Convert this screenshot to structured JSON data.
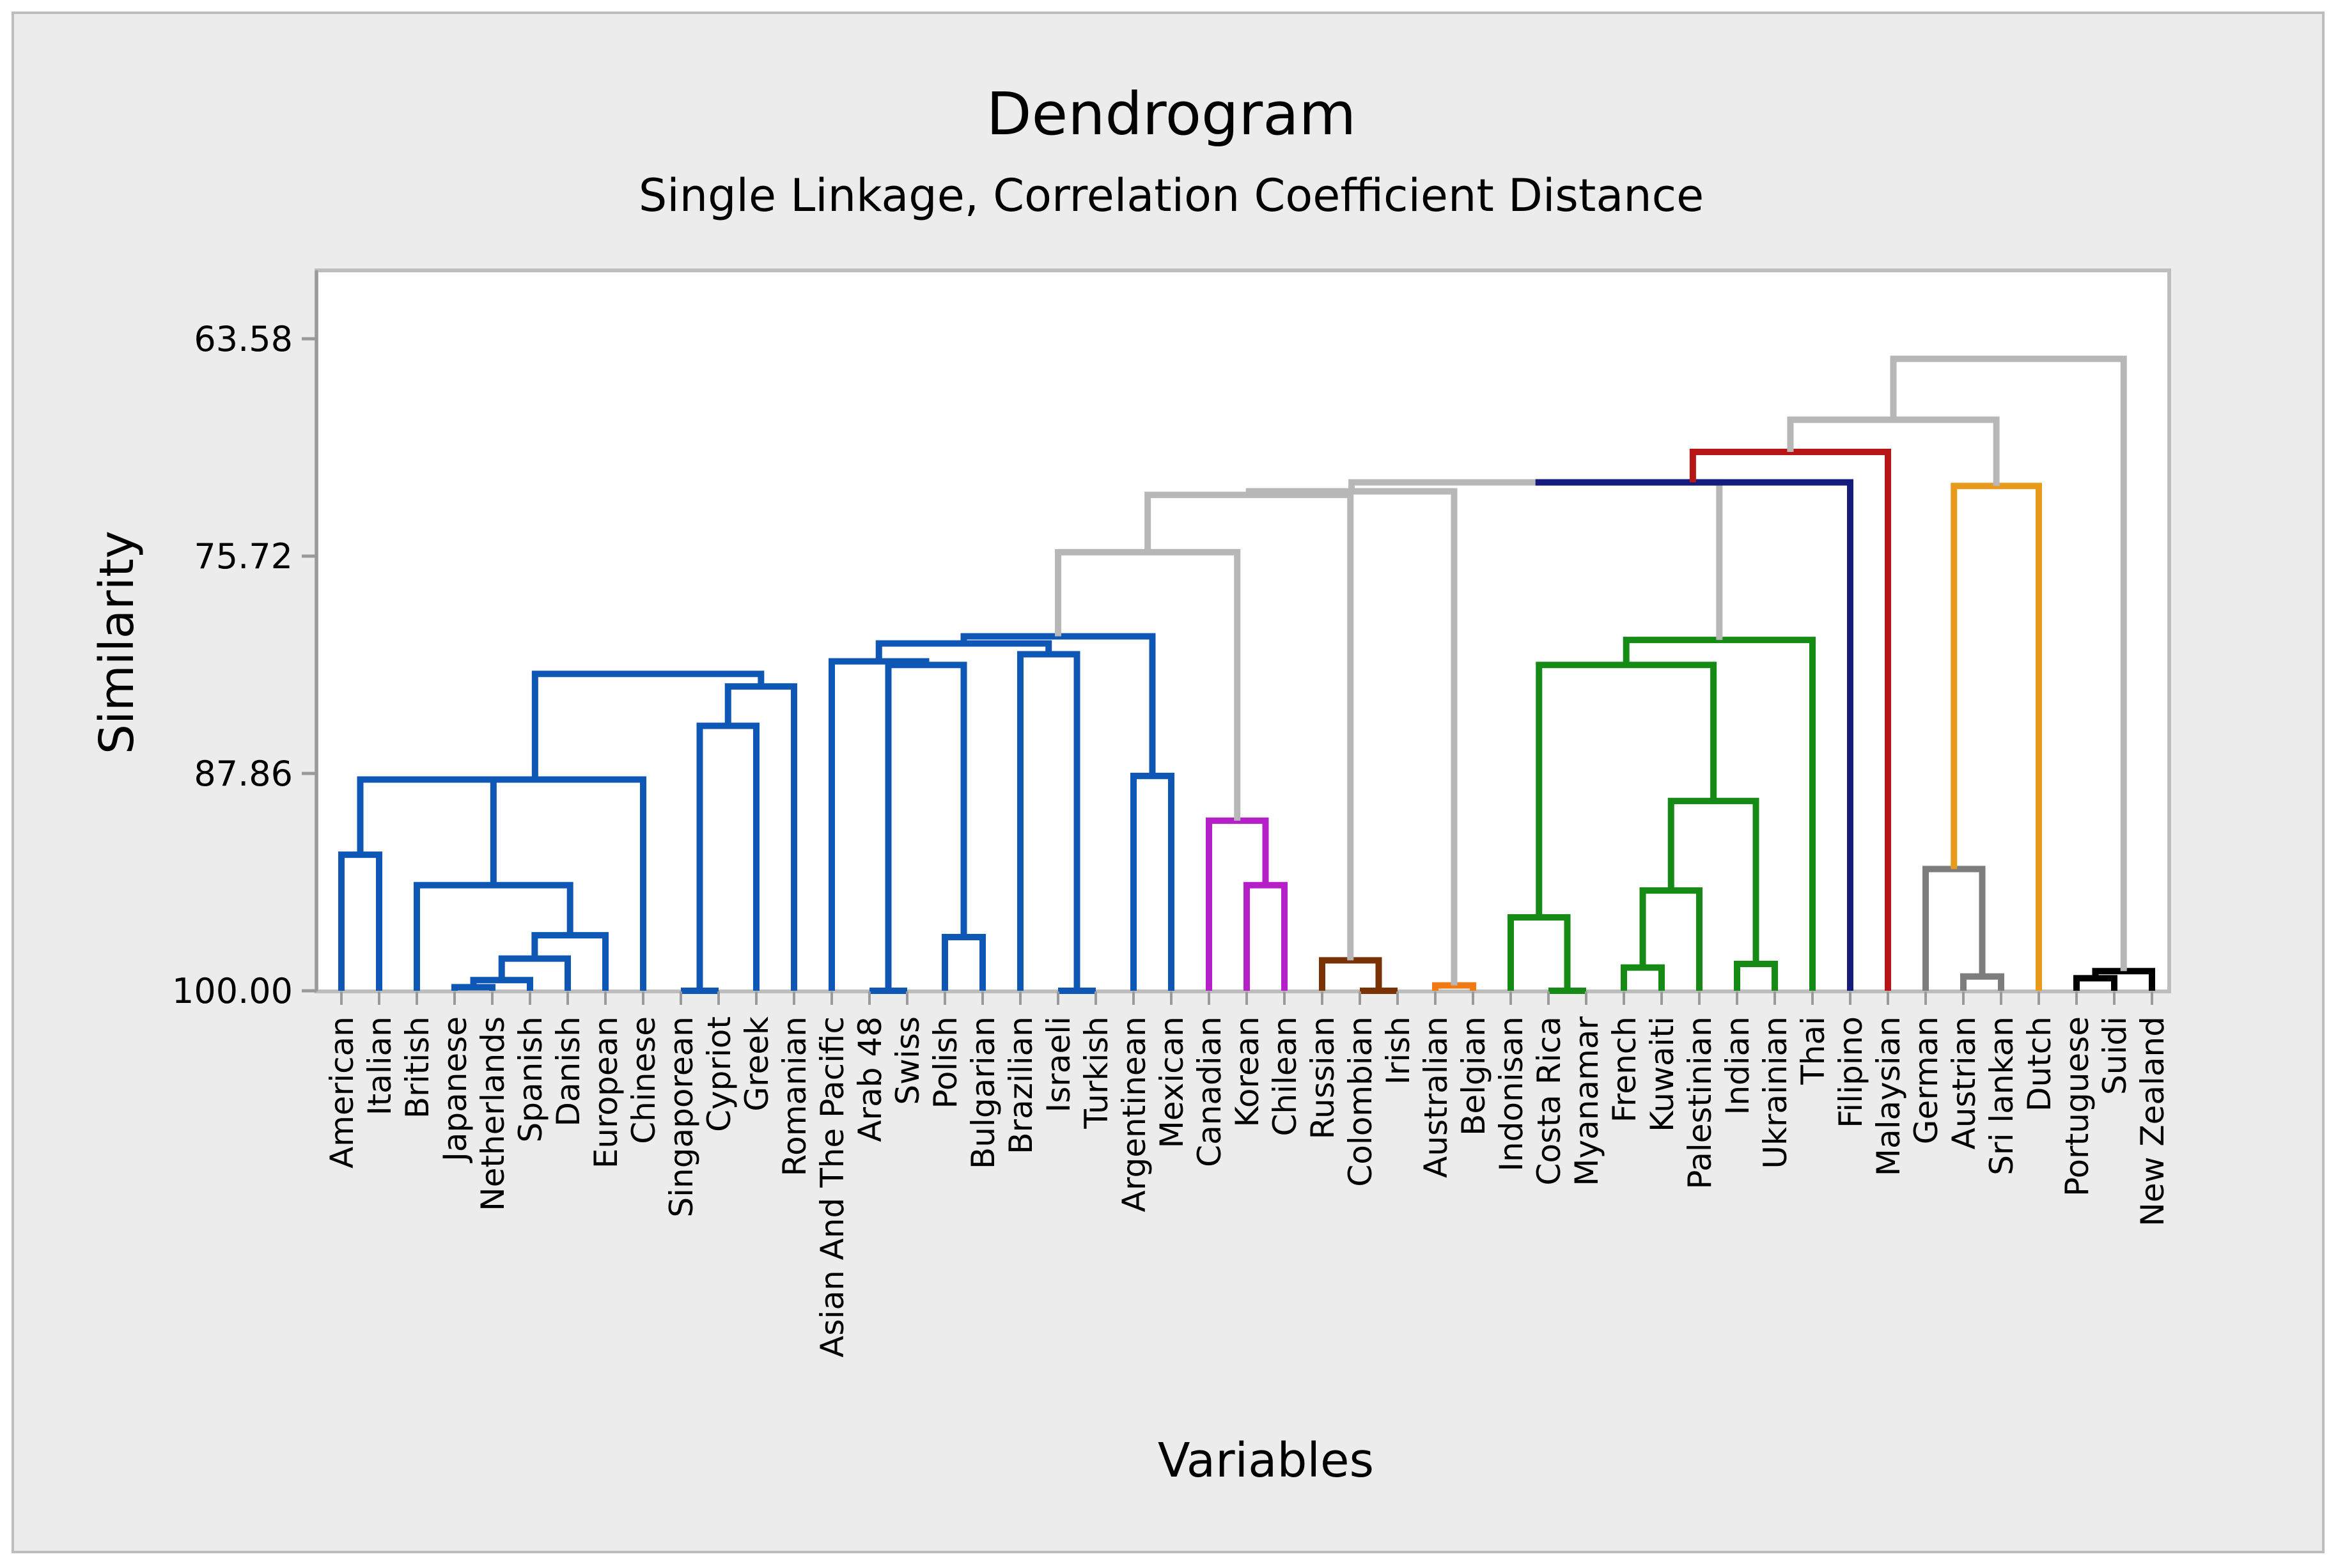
{
  "chart_data": {
    "type": "dendrogram",
    "title": "Dendrogram",
    "subtitle": "Single Linkage, Correlation Coefficient Distance",
    "xlabel": "Variables",
    "ylabel": "Similarity",
    "y_ticks": [
      "63.58",
      "75.72",
      "87.86",
      "100.00"
    ],
    "ylim": [
      100.0,
      63.58
    ],
    "grid": false,
    "leaves": [
      "American",
      "Italian",
      "British",
      "Japanese",
      "Netherlands",
      "Spanish",
      "Danish",
      "European",
      "Chinese",
      "Singaporean",
      "Cypriot",
      "Greek",
      "Romanian",
      "Asian And The Pacific",
      "Arab 48",
      "Swiss",
      "Polish",
      "Bulgarian",
      "Brazilian",
      "Israeli",
      "Turkish",
      "Argentinean",
      "Mexican",
      "Canadian",
      "Korean",
      "Chilean",
      "Russian",
      "Colombian",
      "Irish",
      "Australian",
      "Belgian",
      "Indonisan",
      "Costa Rica",
      "Myanamar",
      "French",
      "Kuwaiti",
      "Palestinian",
      "Indian",
      "Ukrainian",
      "Thai",
      "Filipino",
      "Malaysian",
      "German",
      "Austrian",
      "Sri lankan",
      "Dutch",
      "Portuguese",
      "Suidi",
      "New Zealand"
    ],
    "colors": {
      "blue": "#0f57b4",
      "magenta": "#b51fc8",
      "brown": "#7a3205",
      "orange": "#f27a12",
      "green": "#158a15",
      "navy": "#141d7c",
      "red": "#b81616",
      "gray": "#7d7d7d",
      "dark_orange": "#e89a1c",
      "black": "#000000",
      "light_gray": "#b7b7b7"
    },
    "merges": [
      {
        "a": 3,
        "b": 4,
        "h": 99.8,
        "color": "blue"
      },
      {
        "a": "m0",
        "b": 5,
        "h": 99.4,
        "color": "blue"
      },
      {
        "a": "m1",
        "b": 6,
        "h": 98.2,
        "color": "blue"
      },
      {
        "a": "m2",
        "b": 7,
        "h": 96.9,
        "color": "blue"
      },
      {
        "a": 2,
        "b": "m3",
        "h": 94.1,
        "color": "blue"
      },
      {
        "a": 0,
        "b": 1,
        "h": 92.4,
        "color": "blue"
      },
      {
        "a": "m5",
        "b": "m4",
        "h": 88.2,
        "color": "blue"
      },
      {
        "a": "m6",
        "b": 8,
        "h": 88.2,
        "color": "blue"
      },
      {
        "a": 9,
        "b": 10,
        "h": 100.0,
        "color": "blue"
      },
      {
        "a": "m8",
        "b": 11,
        "h": 85.2,
        "color": "blue"
      },
      {
        "a": "m9",
        "b": 12,
        "h": 83.0,
        "color": "blue"
      },
      {
        "a": "m7",
        "b": "m10",
        "h": 82.3,
        "color": "blue"
      },
      {
        "a": 14,
        "b": 15,
        "h": 100.0,
        "color": "blue"
      },
      {
        "a": 16,
        "b": 17,
        "h": 97.0,
        "color": "blue"
      },
      {
        "a": "m12",
        "b": "m13",
        "h": 81.8,
        "color": "blue"
      },
      {
        "a": 13,
        "b": "m14",
        "h": 81.6,
        "color": "blue"
      },
      {
        "a": 19,
        "b": 20,
        "h": 100.0,
        "color": "blue"
      },
      {
        "a": 18,
        "b": "m16",
        "h": 81.2,
        "color": "blue"
      },
      {
        "a": "m15",
        "b": "m17",
        "h": 80.6,
        "color": "blue"
      },
      {
        "a": 21,
        "b": 22,
        "h": 88.0,
        "color": "blue"
      },
      {
        "a": "m18",
        "b": "m19",
        "h": 80.2,
        "color": "blue"
      },
      {
        "a": 24,
        "b": 25,
        "h": 94.1,
        "color": "magenta"
      },
      {
        "a": 23,
        "b": "m21",
        "h": 90.5,
        "color": "magenta"
      },
      {
        "a": "m20",
        "b": "m22",
        "h": 75.5,
        "color": "light_gray"
      },
      {
        "a": 27,
        "b": 28,
        "h": 100.0,
        "color": "brown"
      },
      {
        "a": 26,
        "b": "m24",
        "h": 98.3,
        "color": "brown"
      },
      {
        "a": 29,
        "b": 30,
        "h": 99.7,
        "color": "orange"
      },
      {
        "a": "m23",
        "b": "m25",
        "h": 72.3,
        "color": "light_gray"
      },
      {
        "a": "m27",
        "b": "m26",
        "h": 72.1,
        "color": "light_gray"
      },
      {
        "a": 32,
        "b": 33,
        "h": 100.0,
        "color": "green"
      },
      {
        "a": 31,
        "b": "m29",
        "h": 95.9,
        "color": "green"
      },
      {
        "a": 34,
        "b": 35,
        "h": 98.7,
        "color": "green"
      },
      {
        "a": "m31",
        "b": 36,
        "h": 94.4,
        "color": "green"
      },
      {
        "a": 37,
        "b": 38,
        "h": 98.5,
        "color": "green"
      },
      {
        "a": "m32",
        "b": "m33",
        "h": 89.4,
        "color": "green"
      },
      {
        "a": "m30",
        "b": "m34",
        "h": 81.8,
        "color": "green"
      },
      {
        "a": "m35",
        "b": 39,
        "h": 80.4,
        "color": "green"
      },
      {
        "a": "m28",
        "b": "m36",
        "h": 71.6,
        "color": "light_gray"
      },
      {
        "a": "m37",
        "b": 40,
        "h": 71.6,
        "color": "navy"
      },
      {
        "a": "m38",
        "b": 41,
        "h": 69.9,
        "color": "red"
      },
      {
        "a": 43,
        "b": 44,
        "h": 99.2,
        "color": "gray"
      },
      {
        "a": 42,
        "b": "m40",
        "h": 93.2,
        "color": "gray"
      },
      {
        "a": "m41",
        "b": 45,
        "h": 71.8,
        "color": "dark_orange"
      },
      {
        "a": "m39",
        "b": "m42",
        "h": 68.1,
        "color": "light_gray"
      },
      {
        "a": 46,
        "b": 47,
        "h": 99.3,
        "color": "black"
      },
      {
        "a": "m44",
        "b": 48,
        "h": 98.9,
        "color": "black"
      },
      {
        "a": "m43",
        "b": "m45",
        "h": 64.7,
        "color": "light_gray"
      }
    ]
  }
}
